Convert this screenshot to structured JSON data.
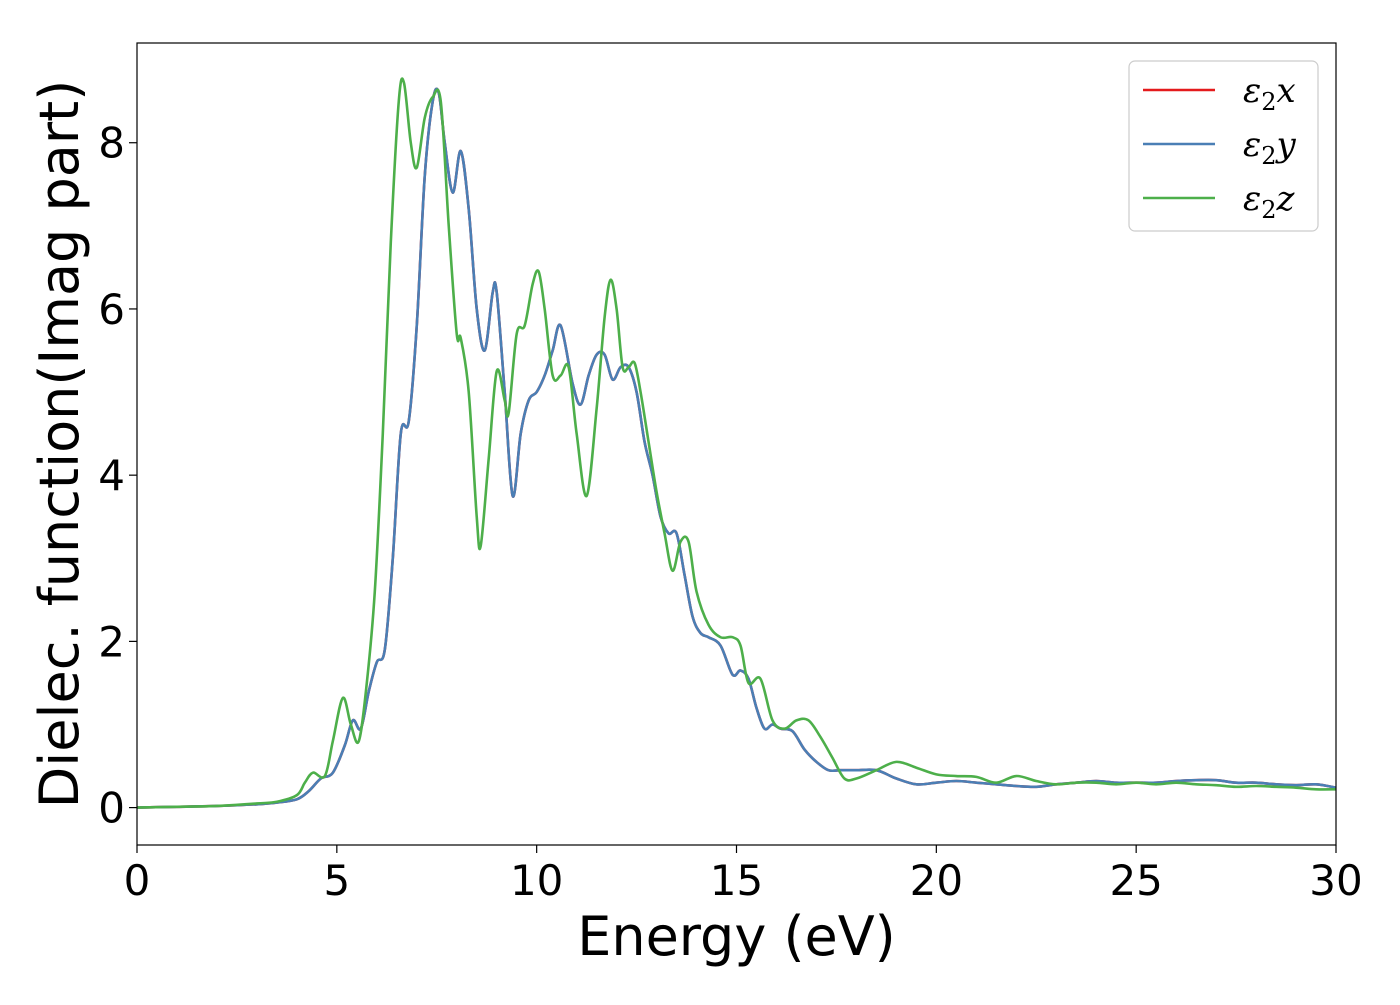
{
  "chart_data": {
    "type": "line",
    "xlabel": "Energy (eV)",
    "ylabel": "Dielec. function(Imag part)",
    "xlim": [
      0,
      30
    ],
    "ylim": [
      -0.45,
      9.2
    ],
    "xticks": [
      0,
      5,
      10,
      15,
      20,
      25,
      30
    ],
    "yticks": [
      0,
      2,
      4,
      6,
      8
    ],
    "grid": false,
    "legend_position": "top-right",
    "series": [
      {
        "name": "ε2x",
        "legend_base": "ε",
        "legend_sub": "2",
        "legend_var": "x",
        "color": "#e41a1c",
        "x": [
          0,
          1,
          2,
          3,
          3.5,
          4,
          4.3,
          4.6,
          4.9,
          5.2,
          5.4,
          5.6,
          5.8,
          6.0,
          6.2,
          6.4,
          6.6,
          6.8,
          7.0,
          7.2,
          7.4,
          7.55,
          7.7,
          7.9,
          8.1,
          8.3,
          8.5,
          8.7,
          8.9,
          9.0,
          9.2,
          9.4,
          9.6,
          9.8,
          10.0,
          10.2,
          10.4,
          10.6,
          10.9,
          11.1,
          11.3,
          11.5,
          11.7,
          11.9,
          12.1,
          12.3,
          12.5,
          12.7,
          12.9,
          13.1,
          13.3,
          13.5,
          13.7,
          13.9,
          14.1,
          14.3,
          14.6,
          14.9,
          15.1,
          15.3,
          15.5,
          15.7,
          15.9,
          16.1,
          16.4,
          16.7,
          17.0,
          17.3,
          17.6,
          18.0,
          18.5,
          19.0,
          19.5,
          20.0,
          20.5,
          21.0,
          21.5,
          22.0,
          22.5,
          23.0,
          23.5,
          24.0,
          24.5,
          25.0,
          25.5,
          26.0,
          26.5,
          27.0,
          27.5,
          28.0,
          28.5,
          29.0,
          29.5,
          30.0
        ],
        "values": [
          0.0,
          0.01,
          0.02,
          0.04,
          0.06,
          0.1,
          0.2,
          0.35,
          0.42,
          0.75,
          1.05,
          0.95,
          1.4,
          1.75,
          1.9,
          3.0,
          4.5,
          4.65,
          5.8,
          7.6,
          8.5,
          8.6,
          8.0,
          7.4,
          7.9,
          7.2,
          6.0,
          5.5,
          6.2,
          6.2,
          5.0,
          3.75,
          4.5,
          4.9,
          5.0,
          5.2,
          5.5,
          5.8,
          5.1,
          4.85,
          5.2,
          5.45,
          5.45,
          5.15,
          5.3,
          5.3,
          5.0,
          4.4,
          4.0,
          3.5,
          3.3,
          3.3,
          2.8,
          2.3,
          2.1,
          2.05,
          1.95,
          1.6,
          1.65,
          1.55,
          1.2,
          0.95,
          1.0,
          0.95,
          0.92,
          0.7,
          0.55,
          0.45,
          0.45,
          0.45,
          0.45,
          0.35,
          0.28,
          0.3,
          0.32,
          0.3,
          0.28,
          0.26,
          0.25,
          0.28,
          0.3,
          0.32,
          0.3,
          0.3,
          0.3,
          0.32,
          0.33,
          0.33,
          0.3,
          0.3,
          0.28,
          0.27,
          0.28,
          0.24
        ]
      },
      {
        "name": "ε2y",
        "legend_base": "ε",
        "legend_sub": "2",
        "legend_var": "y",
        "color": "#4a7fb5",
        "x": [
          0,
          1,
          2,
          3,
          3.5,
          4,
          4.3,
          4.6,
          4.9,
          5.2,
          5.4,
          5.6,
          5.8,
          6.0,
          6.2,
          6.4,
          6.6,
          6.8,
          7.0,
          7.2,
          7.4,
          7.55,
          7.7,
          7.9,
          8.1,
          8.3,
          8.5,
          8.7,
          8.9,
          9.0,
          9.2,
          9.4,
          9.6,
          9.8,
          10.0,
          10.2,
          10.4,
          10.6,
          10.9,
          11.1,
          11.3,
          11.5,
          11.7,
          11.9,
          12.1,
          12.3,
          12.5,
          12.7,
          12.9,
          13.1,
          13.3,
          13.5,
          13.7,
          13.9,
          14.1,
          14.3,
          14.6,
          14.9,
          15.1,
          15.3,
          15.5,
          15.7,
          15.9,
          16.1,
          16.4,
          16.7,
          17.0,
          17.3,
          17.6,
          18.0,
          18.5,
          19.0,
          19.5,
          20.0,
          20.5,
          21.0,
          21.5,
          22.0,
          22.5,
          23.0,
          23.5,
          24.0,
          24.5,
          25.0,
          25.5,
          26.0,
          26.5,
          27.0,
          27.5,
          28.0,
          28.5,
          29.0,
          29.5,
          30.0
        ],
        "values": [
          0.0,
          0.01,
          0.02,
          0.04,
          0.06,
          0.1,
          0.2,
          0.35,
          0.42,
          0.75,
          1.05,
          0.95,
          1.4,
          1.75,
          1.9,
          3.0,
          4.5,
          4.65,
          5.8,
          7.6,
          8.5,
          8.6,
          8.0,
          7.4,
          7.9,
          7.2,
          6.0,
          5.5,
          6.2,
          6.2,
          5.0,
          3.75,
          4.5,
          4.9,
          5.0,
          5.2,
          5.5,
          5.8,
          5.1,
          4.85,
          5.2,
          5.45,
          5.45,
          5.15,
          5.3,
          5.3,
          5.0,
          4.4,
          4.0,
          3.5,
          3.3,
          3.3,
          2.8,
          2.3,
          2.1,
          2.05,
          1.95,
          1.6,
          1.65,
          1.55,
          1.2,
          0.95,
          1.0,
          0.95,
          0.92,
          0.7,
          0.55,
          0.45,
          0.45,
          0.45,
          0.45,
          0.35,
          0.28,
          0.3,
          0.32,
          0.3,
          0.28,
          0.26,
          0.25,
          0.28,
          0.3,
          0.32,
          0.3,
          0.3,
          0.3,
          0.32,
          0.33,
          0.33,
          0.3,
          0.3,
          0.28,
          0.27,
          0.28,
          0.24
        ]
      },
      {
        "name": "ε2z",
        "legend_base": "ε",
        "legend_sub": "2",
        "legend_var": "z",
        "color": "#4daf4a",
        "x": [
          0,
          1,
          2,
          3,
          3.5,
          4,
          4.2,
          4.4,
          4.7,
          4.9,
          5.15,
          5.35,
          5.55,
          5.75,
          5.95,
          6.15,
          6.35,
          6.55,
          6.68,
          6.85,
          7.0,
          7.2,
          7.4,
          7.6,
          7.8,
          8.0,
          8.1,
          8.3,
          8.5,
          8.6,
          8.8,
          9.0,
          9.2,
          9.3,
          9.5,
          9.7,
          9.9,
          10.05,
          10.2,
          10.4,
          10.6,
          10.8,
          11.0,
          11.25,
          11.5,
          11.7,
          11.85,
          12.0,
          12.15,
          12.3,
          12.45,
          12.6,
          12.8,
          13.0,
          13.2,
          13.4,
          13.6,
          13.8,
          14.0,
          14.3,
          14.6,
          14.9,
          15.1,
          15.3,
          15.6,
          15.9,
          16.2,
          16.5,
          16.8,
          17.1,
          17.4,
          17.7,
          18.0,
          18.5,
          19.0,
          19.5,
          20.0,
          20.5,
          21.0,
          21.5,
          22.0,
          22.5,
          23.0,
          23.5,
          24.0,
          24.5,
          25.0,
          25.5,
          26.0,
          26.5,
          27.0,
          27.5,
          28.0,
          28.5,
          29.0,
          29.5,
          30.0
        ],
        "values": [
          0.0,
          0.01,
          0.02,
          0.05,
          0.07,
          0.15,
          0.3,
          0.42,
          0.38,
          0.8,
          1.32,
          1.0,
          0.8,
          1.5,
          2.6,
          4.5,
          6.8,
          8.5,
          8.72,
          8.0,
          7.7,
          8.3,
          8.55,
          8.5,
          7.0,
          5.7,
          5.65,
          5.0,
          3.5,
          3.15,
          4.2,
          5.25,
          4.9,
          4.75,
          5.7,
          5.8,
          6.3,
          6.45,
          6.0,
          5.2,
          5.2,
          5.3,
          4.5,
          3.75,
          4.8,
          5.9,
          6.35,
          6.0,
          5.3,
          5.3,
          5.35,
          5.0,
          4.4,
          3.8,
          3.3,
          2.85,
          3.2,
          3.2,
          2.6,
          2.2,
          2.05,
          2.05,
          1.95,
          1.5,
          1.55,
          1.05,
          0.95,
          1.05,
          1.05,
          0.85,
          0.6,
          0.35,
          0.35,
          0.45,
          0.55,
          0.48,
          0.4,
          0.38,
          0.37,
          0.3,
          0.38,
          0.32,
          0.28,
          0.3,
          0.3,
          0.28,
          0.3,
          0.28,
          0.3,
          0.28,
          0.27,
          0.25,
          0.26,
          0.25,
          0.24,
          0.22,
          0.22
        ]
      }
    ]
  }
}
